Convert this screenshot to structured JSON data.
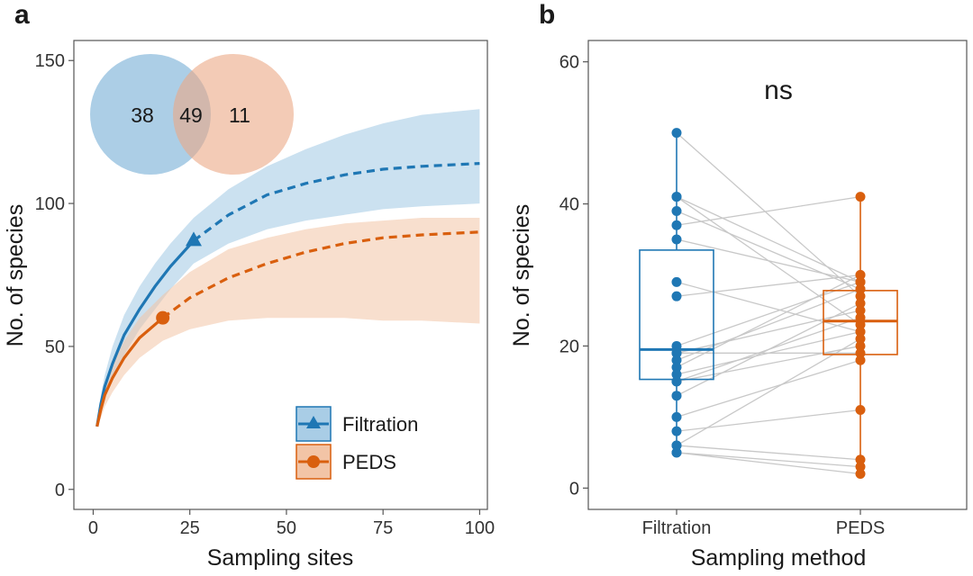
{
  "colors": {
    "filtration": "#1f77b4",
    "peds": "#d95f0e",
    "filtration_fill": "#a9cde6",
    "peds_fill": "#f2c4a6",
    "overlap_fill": "#9f9f9f",
    "venn_blue": "#7fb3d8",
    "venn_orange": "#eba986",
    "pair_line": "#c8c8c8"
  },
  "chart_data": [
    {
      "type": "line",
      "panel": "a",
      "xlabel": "Sampling sites",
      "ylabel": "No. of species",
      "xlim": [
        -5,
        102
      ],
      "ylim": [
        -7,
        157
      ],
      "xticks": [
        0,
        25,
        50,
        75,
        100
      ],
      "yticks": [
        0,
        50,
        100,
        150
      ],
      "legend_position": "bottom-right",
      "series": [
        {
          "name": "Filtration",
          "marker": "triangle",
          "observed_sites": 26,
          "observed_value": 87,
          "x": [
            1,
            2,
            3,
            5,
            8,
            12,
            16,
            20,
            26,
            35,
            45,
            55,
            65,
            75,
            85,
            100
          ],
          "y": [
            22,
            30,
            36,
            44,
            54,
            63,
            71,
            78,
            87,
            96,
            103,
            107,
            110,
            112,
            113,
            114
          ],
          "upper": [
            22,
            33,
            40,
            50,
            61,
            71,
            79,
            86,
            95,
            105,
            113,
            119,
            124,
            128,
            131,
            133
          ],
          "lower": [
            22,
            27,
            32,
            39,
            47,
            56,
            63,
            70,
            79,
            86,
            91,
            94,
            96,
            98,
            99,
            100
          ]
        },
        {
          "name": "PEDS",
          "marker": "circle",
          "observed_sites": 18,
          "observed_value": 60,
          "x": [
            1,
            2,
            3,
            5,
            8,
            12,
            18,
            25,
            35,
            45,
            55,
            65,
            75,
            85,
            100
          ],
          "y": [
            22,
            28,
            33,
            39,
            46,
            53,
            60,
            67,
            74,
            79,
            83,
            86,
            88,
            89,
            90
          ],
          "upper": [
            22,
            31,
            37,
            44,
            52,
            60,
            68,
            76,
            84,
            88,
            91,
            93,
            94,
            95,
            95
          ],
          "lower": [
            22,
            25,
            29,
            34,
            40,
            46,
            52,
            56,
            59,
            60,
            60,
            60,
            59,
            59,
            58
          ]
        }
      ],
      "venn": {
        "left_only": "38",
        "shared": "49",
        "right_only": "11"
      }
    },
    {
      "type": "box",
      "panel": "b",
      "xlabel": "Sampling method",
      "ylabel": "No. of species",
      "ylim": [
        -3,
        63
      ],
      "yticks": [
        0,
        20,
        40,
        60
      ],
      "categories": [
        "Filtration",
        "PEDS"
      ],
      "annotation": "ns",
      "boxes": [
        {
          "name": "Filtration",
          "q1": 15.3,
          "median": 19.5,
          "q3": 33.5,
          "whisker_low": 5,
          "whisker_high": 50
        },
        {
          "name": "PEDS",
          "q1": 18.8,
          "median": 23.5,
          "q3": 27.8,
          "whisker_low": 2,
          "whisker_high": 41
        }
      ],
      "pairs": [
        [
          50,
          27
        ],
        [
          41,
          29
        ],
        [
          41,
          23
        ],
        [
          39,
          28
        ],
        [
          37,
          41
        ],
        [
          35,
          29
        ],
        [
          29,
          22
        ],
        [
          27,
          30
        ],
        [
          20,
          29
        ],
        [
          19,
          25
        ],
        [
          19,
          19
        ],
        [
          18,
          28
        ],
        [
          17,
          30
        ],
        [
          16,
          22
        ],
        [
          15,
          24
        ],
        [
          15,
          20
        ],
        [
          13,
          26
        ],
        [
          10,
          18
        ],
        [
          8,
          11
        ],
        [
          6,
          4
        ],
        [
          6,
          21
        ],
        [
          5,
          3
        ],
        [
          5,
          2
        ]
      ]
    }
  ],
  "panel_a": {
    "letter": "a",
    "xlabel": "Sampling sites",
    "ylabel": "No. of species",
    "xtick_labels": [
      "0",
      "25",
      "50",
      "75",
      "100"
    ],
    "ytick_labels": [
      "0",
      "50",
      "100",
      "150"
    ],
    "legend": [
      "Filtration",
      "PEDS"
    ],
    "venn_left": "38",
    "venn_shared": "49",
    "venn_right": "11"
  },
  "panel_b": {
    "letter": "b",
    "xlabel": "Sampling method",
    "ylabel": "No. of species",
    "xtick_labels": [
      "Filtration",
      "PEDS"
    ],
    "ytick_labels": [
      "0",
      "20",
      "40",
      "60"
    ],
    "annotation": "ns"
  }
}
